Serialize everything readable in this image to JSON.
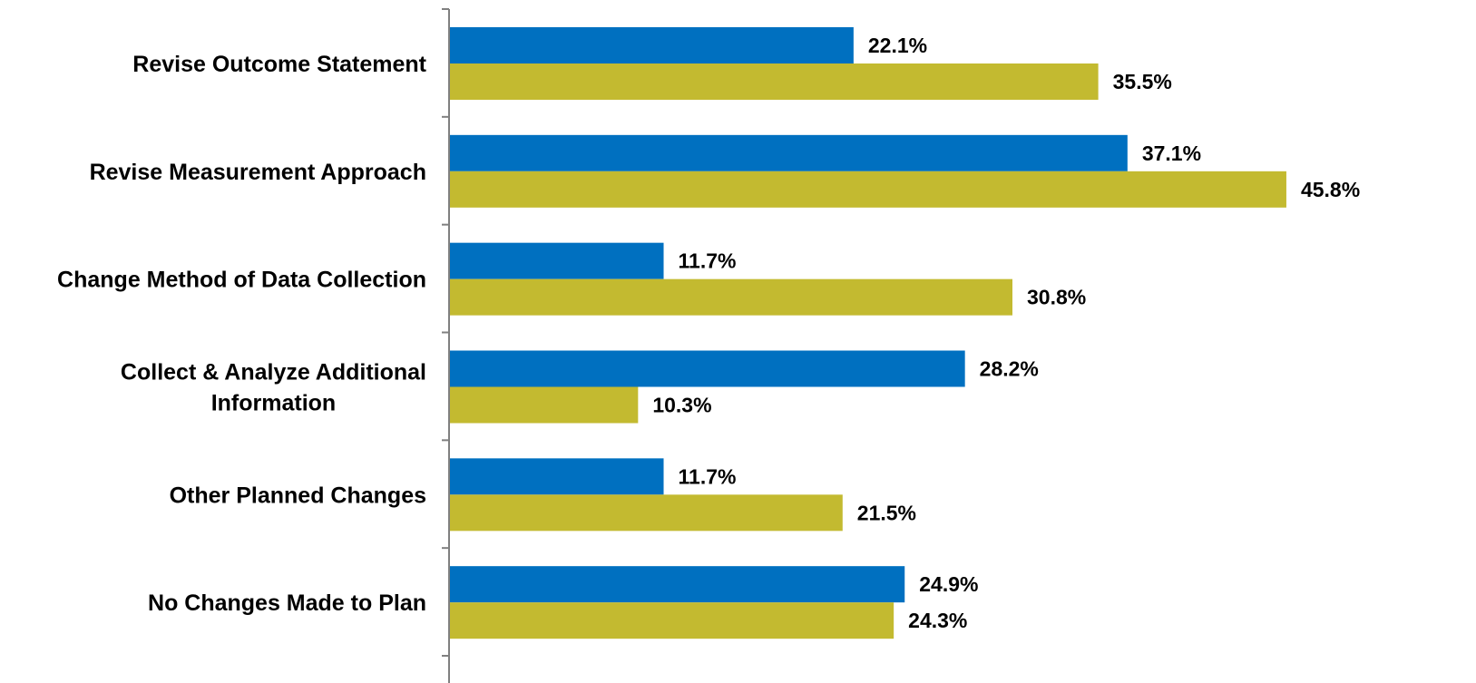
{
  "chart_data": {
    "type": "bar",
    "orientation": "horizontal",
    "title": "",
    "xlabel": "",
    "ylabel": "",
    "xlim": [
      0,
      46
    ],
    "grid": false,
    "legend": "none",
    "value_format": "percent_one_decimal",
    "categories": [
      [
        "Revise Outcome Statement"
      ],
      [
        "Revise Measurement Approach"
      ],
      [
        "Change Method of Data Collection"
      ],
      [
        "Collect & Analyze Additional",
        "Information"
      ],
      [
        "Other Planned Changes"
      ],
      [
        "No Changes Made to Plan"
      ]
    ],
    "series": [
      {
        "color": "#0070C0",
        "values": [
          22.1,
          37.1,
          11.7,
          28.2,
          11.7,
          24.9
        ],
        "labels": [
          "22.1%",
          "37.1%",
          "11.7%",
          "28.2%",
          "11.7%",
          "24.9%"
        ]
      },
      {
        "color": "#C3BA30",
        "values": [
          35.5,
          45.8,
          30.8,
          10.3,
          21.5,
          24.3
        ],
        "labels": [
          "35.5%",
          "45.8%",
          "30.8%",
          "10.3%",
          "21.5%",
          "24.3%"
        ]
      }
    ],
    "colors": {
      "axis": "#808080",
      "background": "#ffffff"
    }
  }
}
